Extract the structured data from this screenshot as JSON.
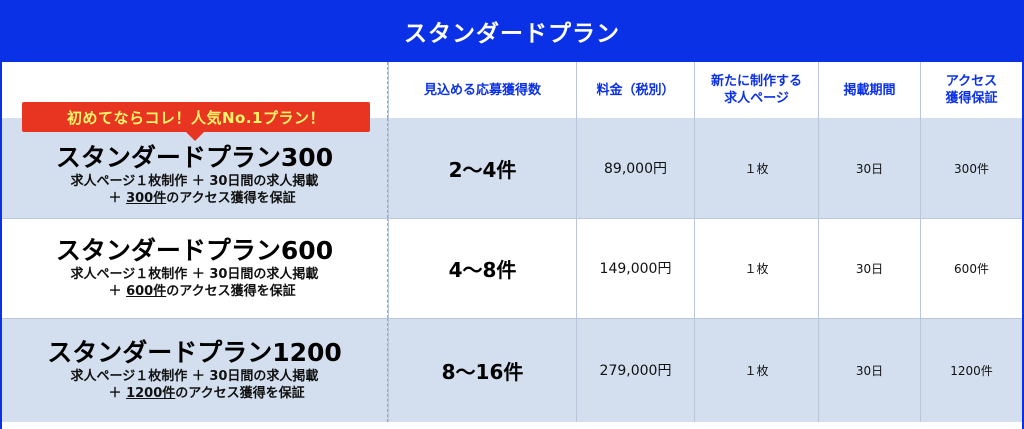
{
  "title": "スタンダードプラン",
  "badge": "初めてならコレ！人気No.1プラン！",
  "headers": {
    "expected": "見込める応募獲得数",
    "price": "料金（税別）",
    "new_pages": "新たに制作する\n求人ページ",
    "period": "掲載期間",
    "access": "アクセス\n獲得保証"
  },
  "plans": [
    {
      "name": "スタンダードプラン300",
      "desc_line1": "求人ページ１枚制作 ＋ 30日間の求人掲載",
      "desc_plus": "＋ ",
      "desc_underlined": "300件",
      "desc_rest": "のアクセス獲得を保証",
      "count": "2～4件",
      "price": "89,000円",
      "pages": "１枚",
      "period": "30日",
      "access": "300件"
    },
    {
      "name": "スタンダードプラン600",
      "desc_line1": "求人ページ１枚制作 ＋ 30日間の求人掲載",
      "desc_plus": "＋ ",
      "desc_underlined": "600件",
      "desc_rest": "のアクセス獲得を保証",
      "count": "4～8件",
      "price": "149,000円",
      "pages": "１枚",
      "period": "30日",
      "access": "600件"
    },
    {
      "name": "スタンダードプラン1200",
      "desc_line1": "求人ページ１枚制作 ＋ 30日間の求人掲載",
      "desc_plus": "＋ ",
      "desc_underlined": "1200件",
      "desc_rest": "のアクセス獲得を保証",
      "count": "8～16件",
      "price": "279,000円",
      "pages": "１枚",
      "period": "30日",
      "access": "1200件"
    }
  ],
  "colors": {
    "frame": "#0b31e6",
    "row_shade": "#d3dfef",
    "badge_bg": "#e73521",
    "badge_text": "#fff56a"
  }
}
